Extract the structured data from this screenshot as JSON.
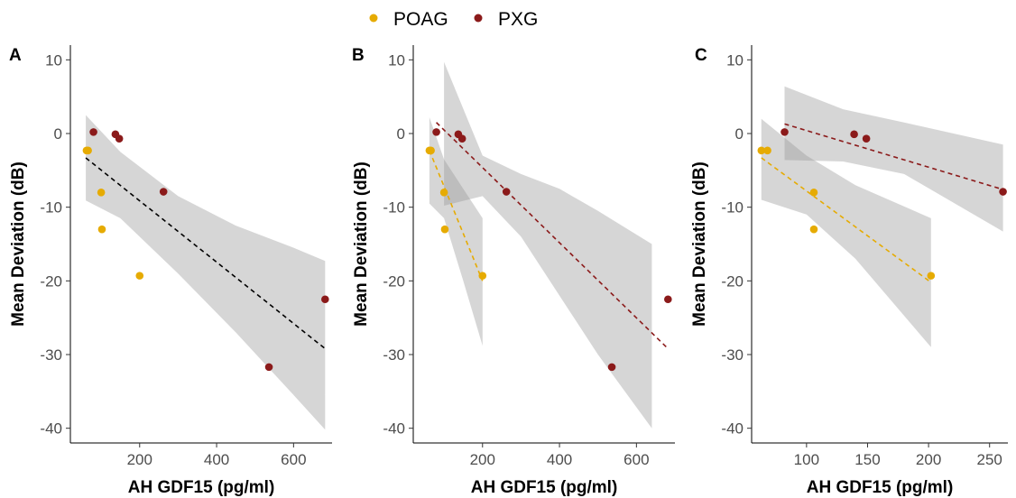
{
  "legend": {
    "items": [
      {
        "label": "POAG",
        "color": "#E6AB02"
      },
      {
        "label": "PXG",
        "color": "#8B1A1A"
      }
    ]
  },
  "chart_data": [
    {
      "panel": "A",
      "type": "scatter",
      "xlabel": "AH GDF15 (pg/ml)",
      "ylabel": "Mean Deviation (dB)",
      "xlim": [
        20,
        700
      ],
      "ylim": [
        -42,
        12
      ],
      "xticks": [
        200,
        400,
        600
      ],
      "yticks": [
        10,
        0,
        -10,
        -20,
        -30,
        -40
      ],
      "grid": false,
      "series": [
        {
          "name": "POAG",
          "color": "#E6AB02",
          "points": [
            [
              62,
              -2.3
            ],
            [
              66,
              -2.3
            ],
            [
              100,
              -8
            ],
            [
              102,
              -13
            ],
            [
              200,
              -19.3
            ]
          ]
        },
        {
          "name": "PXG",
          "color": "#8B1A1A",
          "points": [
            [
              80,
              0.2
            ],
            [
              137,
              -0.1
            ],
            [
              147,
              -0.7
            ],
            [
              262,
              -7.9
            ],
            [
              536,
              -31.7
            ],
            [
              682,
              -22.5
            ]
          ]
        }
      ],
      "fits": [
        {
          "color": "#000000",
          "style": "dashed",
          "x": [
            60,
            682
          ],
          "y": [
            -3.3,
            -29.2
          ],
          "band": {
            "x": [
              60,
              150,
              300,
              450,
              600,
              682
            ],
            "lo": [
              -9.1,
              -11.5,
              -19,
              -27,
              -35.5,
              -40.2
            ],
            "hi": [
              2.5,
              -2.5,
              -8.5,
              -12.5,
              -15.5,
              -17.3
            ]
          }
        }
      ]
    },
    {
      "panel": "B",
      "type": "scatter",
      "xlabel": "AH GDF15 (pg/ml)",
      "ylabel": "Mean Deviation (dB)",
      "xlim": [
        20,
        700
      ],
      "ylim": [
        -42,
        12
      ],
      "xticks": [
        200,
        400,
        600
      ],
      "yticks": [
        10,
        0,
        -10,
        -20,
        -30,
        -40
      ],
      "grid": false,
      "series": [
        {
          "name": "POAG",
          "color": "#E6AB02",
          "points": [
            [
              62,
              -2.3
            ],
            [
              66,
              -2.3
            ],
            [
              100,
              -8
            ],
            [
              102,
              -13
            ],
            [
              200,
              -19.3
            ]
          ]
        },
        {
          "name": "PXG",
          "color": "#8B1A1A",
          "points": [
            [
              80,
              0.2
            ],
            [
              137,
              -0.1
            ],
            [
              147,
              -0.7
            ],
            [
              262,
              -7.9
            ],
            [
              536,
              -31.7
            ],
            [
              682,
              -22.5
            ]
          ]
        }
      ],
      "fits": [
        {
          "color": "#E6AB02",
          "style": "dashed",
          "x": [
            62,
            200
          ],
          "y": [
            -2.3,
            -20
          ],
          "band": {
            "x": [
              62,
              100,
              150,
              200
            ],
            "lo": [
              -9.5,
              -11.5,
              -20,
              -28.8
            ],
            "hi": [
              2.2,
              -3.5,
              -7.5,
              -11.5
            ]
          }
        },
        {
          "color": "#8B1A1A",
          "style": "dashed",
          "x": [
            80,
            682
          ],
          "y": [
            1.5,
            -29.2
          ],
          "band": {
            "x": [
              100,
              200,
              300,
              400,
              500,
              640
            ],
            "lo": [
              -9.8,
              -8.5,
              -14,
              -22,
              -30,
              -40
            ],
            "hi": [
              9.7,
              -3,
              -5.5,
              -7.5,
              -10.5,
              -15
            ]
          }
        }
      ]
    },
    {
      "panel": "C",
      "type": "scatter",
      "xlabel": "AH GDF15 (pg/ml)",
      "ylabel": "Mean Deviation (dB)",
      "xlim": [
        55,
        265
      ],
      "ylim": [
        -42,
        12
      ],
      "xticks": [
        100,
        150,
        200,
        250
      ],
      "yticks": [
        10,
        0,
        -10,
        -20,
        -30,
        -40
      ],
      "grid": false,
      "series": [
        {
          "name": "POAG",
          "color": "#E6AB02",
          "points": [
            [
              63,
              -2.3
            ],
            [
              68,
              -2.3
            ],
            [
              106,
              -8
            ],
            [
              106,
              -13
            ],
            [
              202,
              -19.3
            ]
          ]
        },
        {
          "name": "PXG",
          "color": "#8B1A1A",
          "points": [
            [
              82,
              0.2
            ],
            [
              139,
              -0.1
            ],
            [
              149,
              -0.7
            ],
            [
              261,
              -7.9
            ]
          ]
        }
      ],
      "fits": [
        {
          "color": "#E6AB02",
          "style": "dashed",
          "x": [
            63,
            202
          ],
          "y": [
            -3.3,
            -20.2
          ],
          "band": {
            "x": [
              63,
              100,
              140,
              202
            ],
            "lo": [
              -9,
              -11,
              -17,
              -29
            ],
            "hi": [
              2,
              -3,
              -7,
              -11.5
            ]
          }
        },
        {
          "color": "#8B1A1A",
          "style": "dashed",
          "x": [
            82,
            261
          ],
          "y": [
            1.3,
            -7.6
          ],
          "band": {
            "x": [
              82,
              130,
              180,
              261
            ],
            "lo": [
              -3.6,
              -3.8,
              -5.5,
              -13.3
            ],
            "hi": [
              6.4,
              3.3,
              1.5,
              -1.5
            ]
          }
        }
      ]
    }
  ]
}
